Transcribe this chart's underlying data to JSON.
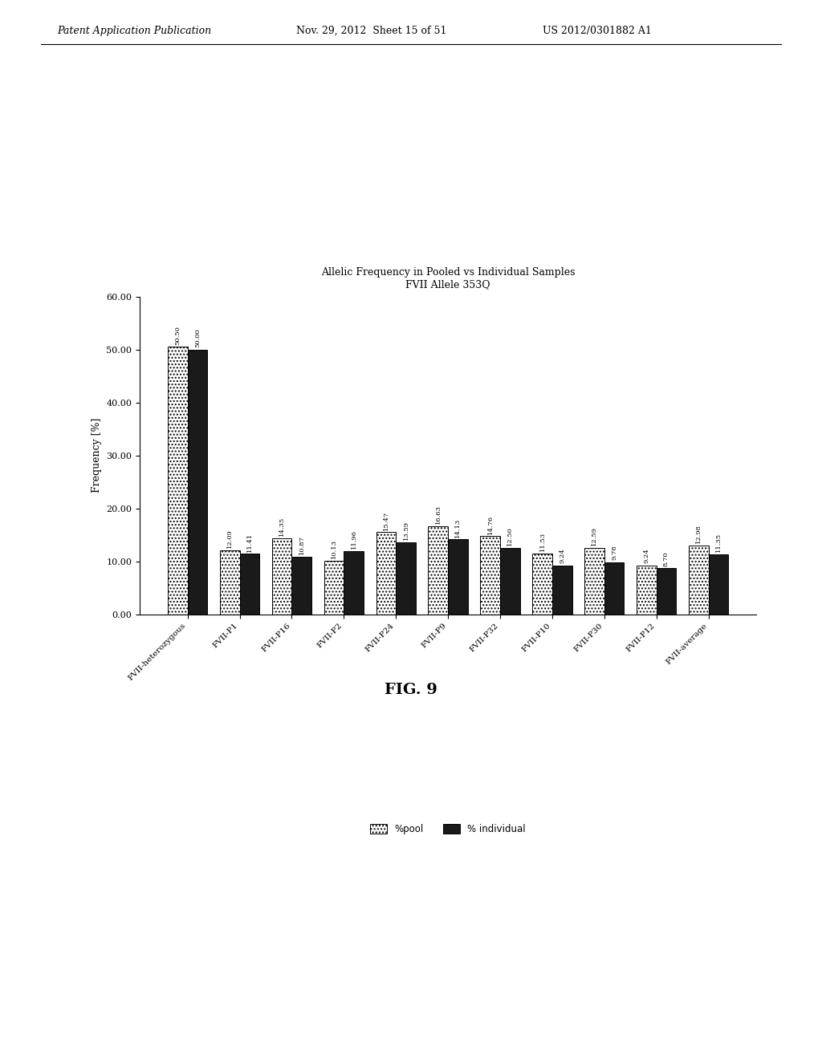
{
  "title_line1": "Allelic Frequency in Pooled vs Individual Samples",
  "title_line2": "FVII Allele 353Q",
  "ylabel": "Frequency [%]",
  "ylim": [
    0,
    60
  ],
  "yticks": [
    0.0,
    10.0,
    20.0,
    30.0,
    40.0,
    50.0,
    60.0
  ],
  "categories": [
    "FVII-heterozygous",
    "FVII-P1",
    "FVII-P16",
    "FVII-P2",
    "FVII-P24",
    "FVII-P9",
    "FVII-P32",
    "FVII-P10",
    "FVII-P30",
    "FVII-P12",
    "FVII-average"
  ],
  "pool_values": [
    50.5,
    12.09,
    14.35,
    10.13,
    15.47,
    16.63,
    14.76,
    11.53,
    12.59,
    9.24,
    12.98
  ],
  "individual_values": [
    50.0,
    11.41,
    10.87,
    11.96,
    13.59,
    14.13,
    12.5,
    9.24,
    9.78,
    8.7,
    11.35
  ],
  "pool_color": "#c8c8c8",
  "individual_color": "#1a1a1a",
  "background_color": "#ffffff",
  "bar_width": 0.38,
  "legend_pool": "%pool",
  "legend_individual": "% individual",
  "fig_label": "FIG. 9",
  "header_left": "Patent Application Publication",
  "header_mid": "Nov. 29, 2012  Sheet 15 of 51",
  "header_right": "US 2012/0301882 A1"
}
